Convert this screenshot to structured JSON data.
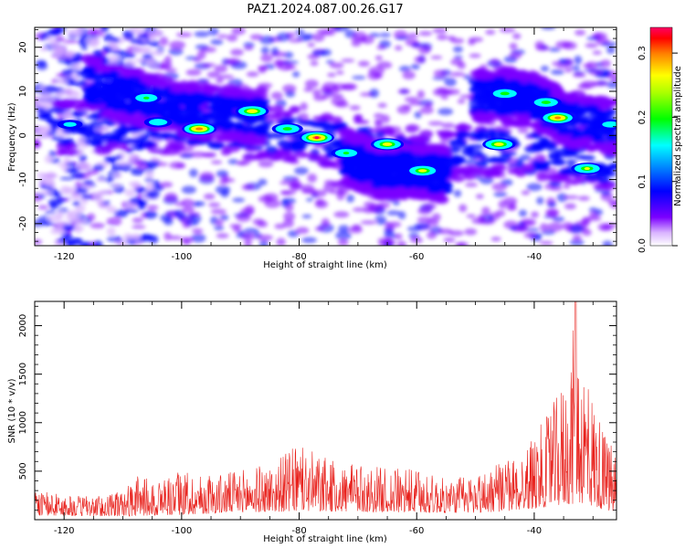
{
  "title": "PAZ1.2024.087.00.26.G17",
  "chart_data": [
    {
      "type": "heatmap",
      "xlabel": "Height of straight line (km)",
      "ylabel": "Frequency (Hz)",
      "xlim": [
        -125,
        -26
      ],
      "ylim": [
        -25,
        24.5
      ],
      "xticks": [
        -120,
        -100,
        -80,
        -60,
        -40
      ],
      "yticks": [
        -20,
        -10,
        0,
        10,
        20
      ],
      "colorbar": {
        "label": "Normalized spectral amplitude",
        "range": [
          0,
          0.34
        ],
        "ticks": [
          0.0,
          0.1,
          0.2,
          0.3
        ],
        "colormap": [
          "#ffffff",
          "#d9b3ff",
          "#7b00ff",
          "#0000ff",
          "#00ffff",
          "#00ff00",
          "#ffff00",
          "#ff8000",
          "#ff0000",
          "#ff0066"
        ]
      },
      "ridges": [
        {
          "x": [
            -122,
            -110,
            -100,
            -90,
            -80,
            -76,
            -70,
            -60,
            -50,
            -40,
            -30,
            -26
          ],
          "y": [
            2,
            2,
            2,
            1,
            0,
            -0.5,
            -2,
            -6,
            -3,
            -3,
            -6,
            -8
          ]
        },
        {
          "x": [
            -116,
            -106,
            -100,
            -92,
            -86
          ],
          "y": [
            12,
            8,
            6,
            5,
            4
          ]
        },
        {
          "x": [
            -50,
            -45,
            -40,
            -35,
            -30,
            -26
          ],
          "y": [
            9,
            9,
            8,
            4,
            3,
            2
          ]
        },
        {
          "x": [
            -72,
            -66,
            -60,
            -55
          ],
          "y": [
            -5,
            -8,
            -8,
            -9
          ]
        }
      ],
      "peaks": [
        {
          "x": -97,
          "y": 1.5,
          "value": 0.32
        },
        {
          "x": -77,
          "y": -0.5,
          "value": 0.33
        },
        {
          "x": -36,
          "y": 4,
          "value": 0.31
        },
        {
          "x": -88,
          "y": 5.5,
          "value": 0.26
        },
        {
          "x": -65,
          "y": -2,
          "value": 0.25
        },
        {
          "x": -46,
          "y": -2,
          "value": 0.25
        },
        {
          "x": -59,
          "y": -8,
          "value": 0.24
        },
        {
          "x": -31,
          "y": -7.5,
          "value": 0.22
        },
        {
          "x": -45,
          "y": 9.5,
          "value": 0.2
        },
        {
          "x": -38,
          "y": 7.5,
          "value": 0.2
        },
        {
          "x": -106,
          "y": 8.5,
          "value": 0.18
        },
        {
          "x": -82,
          "y": 1.5,
          "value": 0.2
        },
        {
          "x": -72,
          "y": -4,
          "value": 0.18
        },
        {
          "x": -104,
          "y": 3,
          "value": 0.15
        },
        {
          "x": -27,
          "y": 2.5,
          "value": 0.14
        },
        {
          "x": -119,
          "y": 2.5,
          "value": 0.12
        }
      ]
    },
    {
      "type": "line",
      "xlabel": "Height of straight line (km)",
      "ylabel": "SNR (10 * v/v)",
      "xlim": [
        -125,
        -26
      ],
      "ylim": [
        0,
        2250
      ],
      "xticks": [
        -120,
        -100,
        -80,
        -60,
        -40
      ],
      "yticks": [
        500,
        1000,
        1500,
        2000
      ],
      "series": [
        {
          "color": "#e8201b",
          "envelope": {
            "x": [
              -125,
              -120,
              -115,
              -110,
              -107,
              -105,
              -100,
              -95,
              -90,
              -85,
              -80,
              -75,
              -70,
              -65,
              -60,
              -55,
              -50,
              -45,
              -42,
              -40,
              -38,
              -36,
              -34,
              -33,
              -32,
              -30,
              -28,
              -26
            ],
            "y": [
              300,
              260,
              240,
              300,
              480,
              400,
              500,
              460,
              520,
              580,
              780,
              620,
              560,
              540,
              520,
              420,
              480,
              600,
              700,
              900,
              1050,
              1300,
              1600,
              2200,
              1800,
              1300,
              900,
              700
            ]
          },
          "baseline": {
            "x": [
              -125,
              -120,
              -110,
              -100,
              -90,
              -80,
              -70,
              -60,
              -50,
              -45,
              -40,
              -35,
              -32,
              -28,
              -26
            ],
            "y": [
              90,
              80,
              70,
              100,
              150,
              170,
              160,
              140,
              140,
              170,
              230,
              300,
              340,
              200,
              120
            ]
          }
        }
      ]
    }
  ]
}
